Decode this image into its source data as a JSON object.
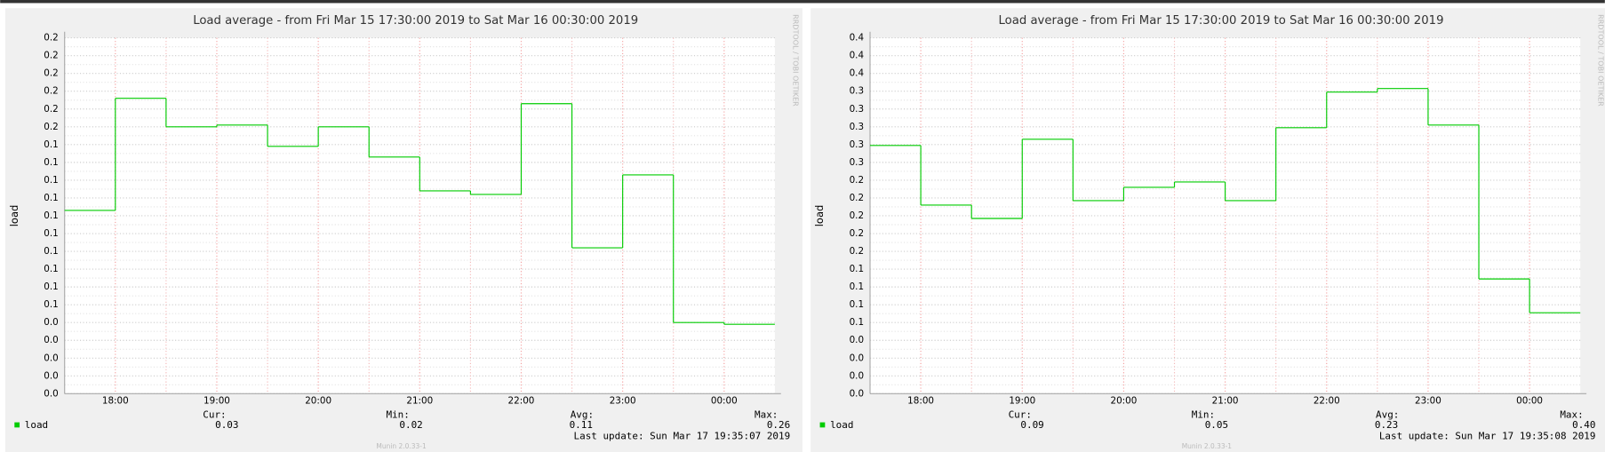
{
  "chart_data": [
    {
      "type": "line",
      "drawstyle": "steps-post",
      "title": "Load average - from Fri Mar 15 17:30:00 2019 to Sat Mar 16 00:30:00 2019",
      "y_label": "load",
      "side_text": "RRDTOOL / TOBI OETIKER",
      "x": [
        17.5,
        18,
        18.5,
        19,
        19.5,
        20,
        20.5,
        21,
        21.5,
        22,
        22.5,
        23,
        23.5,
        24
      ],
      "xlim": [
        17.5,
        24.5
      ],
      "xticks": [
        {
          "value": 18,
          "label": "18:00"
        },
        {
          "value": 19,
          "label": "19:00"
        },
        {
          "value": 20,
          "label": "20:00"
        },
        {
          "value": 21,
          "label": "21:00"
        },
        {
          "value": 22,
          "label": "22:00"
        },
        {
          "value": 23,
          "label": "23:00"
        },
        {
          "value": 24,
          "label": "00:00"
        }
      ],
      "ylim": [
        0,
        0.2
      ],
      "yticks": [
        {
          "value": 0,
          "label": "0.0"
        },
        {
          "value": 0.01,
          "label": "0.0"
        },
        {
          "value": 0.02,
          "label": "0.0"
        },
        {
          "value": 0.03,
          "label": "0.0"
        },
        {
          "value": 0.04,
          "label": "0.0"
        },
        {
          "value": 0.05,
          "label": "0.1"
        },
        {
          "value": 0.06,
          "label": "0.1"
        },
        {
          "value": 0.07,
          "label": "0.1"
        },
        {
          "value": 0.08,
          "label": "0.1"
        },
        {
          "value": 0.09,
          "label": "0.1"
        },
        {
          "value": 0.1,
          "label": "0.1"
        },
        {
          "value": 0.11,
          "label": "0.1"
        },
        {
          "value": 0.12,
          "label": "0.1"
        },
        {
          "value": 0.13,
          "label": "0.1"
        },
        {
          "value": 0.14,
          "label": "0.1"
        },
        {
          "value": 0.15,
          "label": "0.2"
        },
        {
          "value": 0.16,
          "label": "0.2"
        },
        {
          "value": 0.17,
          "label": "0.2"
        },
        {
          "value": 0.18,
          "label": "0.2"
        },
        {
          "value": 0.19,
          "label": "0.2"
        },
        {
          "value": 0.2,
          "label": "0.2"
        }
      ],
      "grid": true,
      "series": [
        {
          "name": "load",
          "color": "#00cc00",
          "values": [
            0.103,
            0.166,
            0.15,
            0.151,
            0.139,
            0.15,
            0.133,
            0.114,
            0.112,
            0.163,
            0.082,
            0.123,
            0.04,
            0.039
          ]
        }
      ],
      "stats": {
        "labels": [
          "Cur:",
          "Min:",
          "Avg:",
          "Max:"
        ],
        "values": [
          0.03,
          0.02,
          0.11,
          0.26
        ],
        "value_labels": [
          "0.03",
          "0.02",
          "0.11",
          "0.26"
        ]
      },
      "last_update": "Last update: Sun Mar 17 19:35:07 2019",
      "footer": "Munin 2.0.33-1"
    },
    {
      "type": "line",
      "drawstyle": "steps-post",
      "title": "Load average - from Fri Mar 15 17:30:00 2019 to Sat Mar 16 00:30:00 2019",
      "y_label": "load",
      "side_text": "RRDTOOL / TOBI OETIKER",
      "x": [
        17.5,
        18,
        18.5,
        19,
        19.5,
        20,
        20.5,
        21,
        21.5,
        22,
        22.5,
        23,
        23.5,
        24
      ],
      "xlim": [
        17.5,
        24.5
      ],
      "xticks": [
        {
          "value": 18,
          "label": "18:00"
        },
        {
          "value": 19,
          "label": "19:00"
        },
        {
          "value": 20,
          "label": "20:00"
        },
        {
          "value": 21,
          "label": "21:00"
        },
        {
          "value": 22,
          "label": "22:00"
        },
        {
          "value": 23,
          "label": "23:00"
        },
        {
          "value": 24,
          "label": "00:00"
        }
      ],
      "ylim": [
        0,
        0.4
      ],
      "yticks": [
        {
          "value": 0,
          "label": "0.0"
        },
        {
          "value": 0.02,
          "label": "0.0"
        },
        {
          "value": 0.04,
          "label": "0.0"
        },
        {
          "value": 0.06,
          "label": "0.0"
        },
        {
          "value": 0.08,
          "label": "0.1"
        },
        {
          "value": 0.1,
          "label": "0.1"
        },
        {
          "value": 0.12,
          "label": "0.1"
        },
        {
          "value": 0.14,
          "label": "0.1"
        },
        {
          "value": 0.16,
          "label": "0.2"
        },
        {
          "value": 0.18,
          "label": "0.2"
        },
        {
          "value": 0.2,
          "label": "0.2"
        },
        {
          "value": 0.22,
          "label": "0.2"
        },
        {
          "value": 0.24,
          "label": "0.2"
        },
        {
          "value": 0.26,
          "label": "0.3"
        },
        {
          "value": 0.28,
          "label": "0.3"
        },
        {
          "value": 0.3,
          "label": "0.3"
        },
        {
          "value": 0.32,
          "label": "0.3"
        },
        {
          "value": 0.34,
          "label": "0.3"
        },
        {
          "value": 0.36,
          "label": "0.4"
        },
        {
          "value": 0.38,
          "label": "0.4"
        },
        {
          "value": 0.4,
          "label": "0.4"
        }
      ],
      "grid": true,
      "series": [
        {
          "name": "load",
          "color": "#00cc00",
          "values": [
            0.279,
            0.212,
            0.197,
            0.286,
            0.217,
            0.232,
            0.238,
            0.217,
            0.299,
            0.339,
            0.343,
            0.302,
            0.129,
            0.091
          ]
        }
      ],
      "stats": {
        "labels": [
          "Cur:",
          "Min:",
          "Avg:",
          "Max:"
        ],
        "values": [
          0.09,
          0.05,
          0.23,
          0.4
        ],
        "value_labels": [
          "0.09",
          "0.05",
          "0.23",
          "0.40"
        ]
      },
      "last_update": "Last update: Sun Mar 17 19:35:08 2019",
      "footer": "Munin 2.0.33-1"
    }
  ]
}
